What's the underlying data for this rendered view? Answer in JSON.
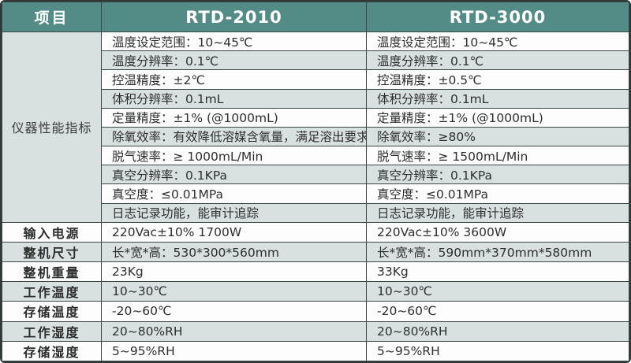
{
  "table": {
    "header": {
      "item": "项目",
      "rtd2010": "RTD-2010",
      "rtd3000": "RTD-3000"
    },
    "perf_group_label": "仪器性能指标",
    "perf_rows": [
      {
        "rtd2010": "温度设定范围：10~45℃",
        "rtd3000": "温度设定范围：10~45℃"
      },
      {
        "rtd2010": "温度分辨率：0.1℃",
        "rtd3000": "温度分辨率：0.1℃"
      },
      {
        "rtd2010": "控温精度：±2℃",
        "rtd3000": "控温精度：±0.5℃"
      },
      {
        "rtd2010": "体积分辨率：0.1mL",
        "rtd3000": "体积分辨率：0.1mL"
      },
      {
        "rtd2010": "定量精度：±1% (@1000mL)",
        "rtd3000": "定量精度：±1% (@1000mL)"
      },
      {
        "rtd2010": "除氧效率：有效降低溶媒含氧量，满足溶出要求",
        "rtd3000": "除氧效率：≥80%"
      },
      {
        "rtd2010": "脱气速率：≥ 1000mL/Min",
        "rtd3000": "脱气速率：≥ 1500mL/Min"
      },
      {
        "rtd2010": "真空分辨率：0.1KPa",
        "rtd3000": "真空分辨率：0.1KPa"
      },
      {
        "rtd2010": "真空度：≤0.01MPa",
        "rtd3000": "真空度：≤0.01MPa"
      },
      {
        "rtd2010": "日志记录功能，能审计追踪",
        "rtd3000": "日志记录功能，能审计追踪"
      }
    ],
    "spec_rows": [
      {
        "label": "输入电源",
        "rtd2010": "220Vac±10% 1700W",
        "rtd3000": "220Vac±10% 3600W"
      },
      {
        "label": "整机尺寸",
        "rtd2010": "长*宽*高：530*300*560mm",
        "rtd3000": "长*宽*高：590mm*370mm*580mm"
      },
      {
        "label": "整机重量",
        "rtd2010": "23Kg",
        "rtd3000": "33Kg"
      },
      {
        "label": "工作温度",
        "rtd2010": "10~30℃",
        "rtd3000": "10~30℃"
      },
      {
        "label": "存储温度",
        "rtd2010": "-20~60℃",
        "rtd3000": "-20~60℃"
      },
      {
        "label": "工作湿度",
        "rtd2010": "20~80%RH",
        "rtd3000": "20~80%RH"
      },
      {
        "label": "存储湿度",
        "rtd2010": "5~95%RH",
        "rtd3000": "5~95%RH"
      }
    ],
    "colors": {
      "header_teal": "#538c86",
      "stripe": "#d9e1e0",
      "row_white": "#fdfdfd",
      "grid_line": "#3c4644",
      "header_text": "#ffffff",
      "body_text": "#2d2f2e"
    }
  }
}
